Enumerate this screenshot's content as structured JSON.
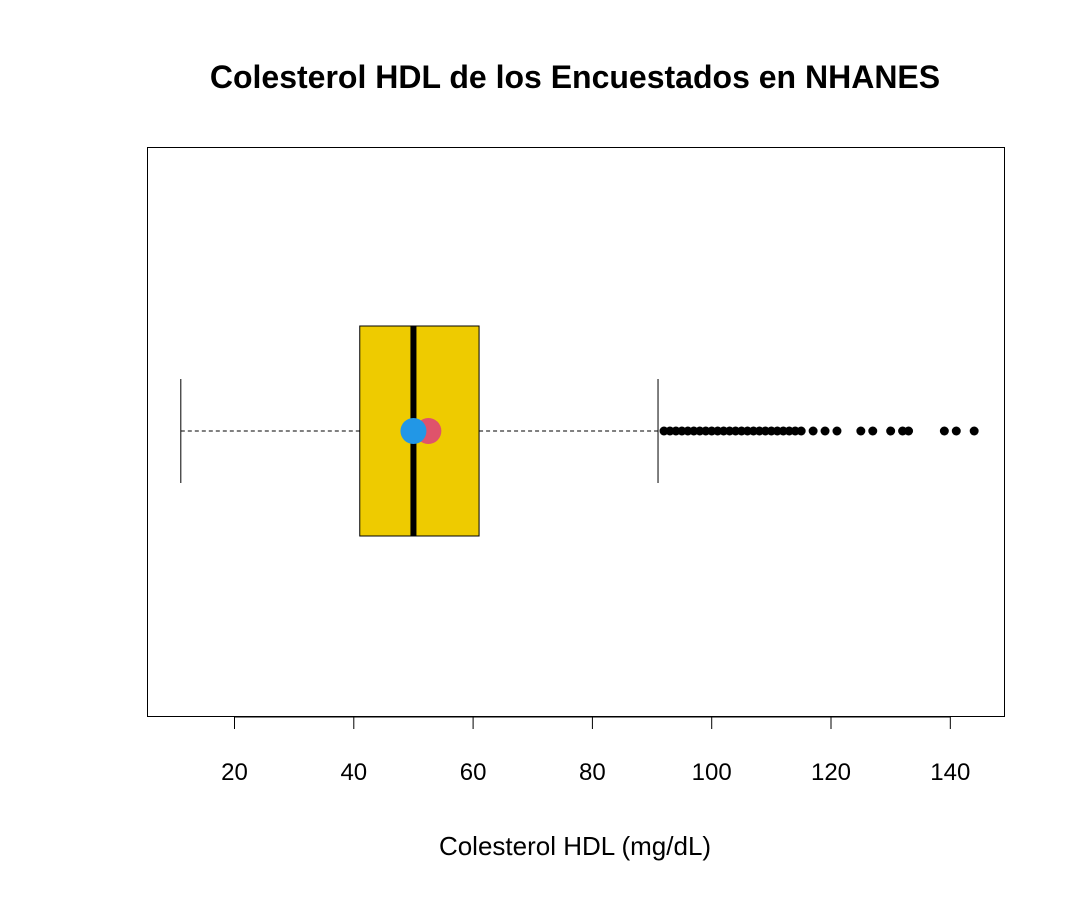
{
  "chart_data": {
    "type": "boxplot",
    "orientation": "horizontal",
    "title": "Colesterol HDL de los Encuestados en NHANES",
    "xlabel": "Colesterol HDL (mg/dL)",
    "ylabel": "",
    "xlim": [
      5.5,
      149
    ],
    "x_ticks": [
      20,
      40,
      60,
      80,
      100,
      120,
      140
    ],
    "x_tick_labels": [
      "20",
      "40",
      "60",
      "80",
      "100",
      "120",
      "140"
    ],
    "grid": false,
    "box": {
      "min_whisker": 11,
      "q1": 41,
      "median": 50,
      "q3": 61,
      "max_whisker": 91
    },
    "mean_marker": {
      "value": 52.5,
      "color": "#DF536B"
    },
    "median_marker": {
      "value": 50,
      "color": "#2297E6"
    },
    "outliers": [
      92,
      93,
      94,
      95,
      96,
      97,
      98,
      99,
      100,
      101,
      102,
      103,
      104,
      105,
      106,
      107,
      108,
      109,
      110,
      111,
      112,
      113,
      114,
      115,
      117,
      119,
      121,
      125,
      127,
      130,
      132,
      133,
      139,
      141,
      144
    ],
    "colors": {
      "box_fill": "#EECB00",
      "median_line": "#000000",
      "outlier": "#000000"
    }
  }
}
